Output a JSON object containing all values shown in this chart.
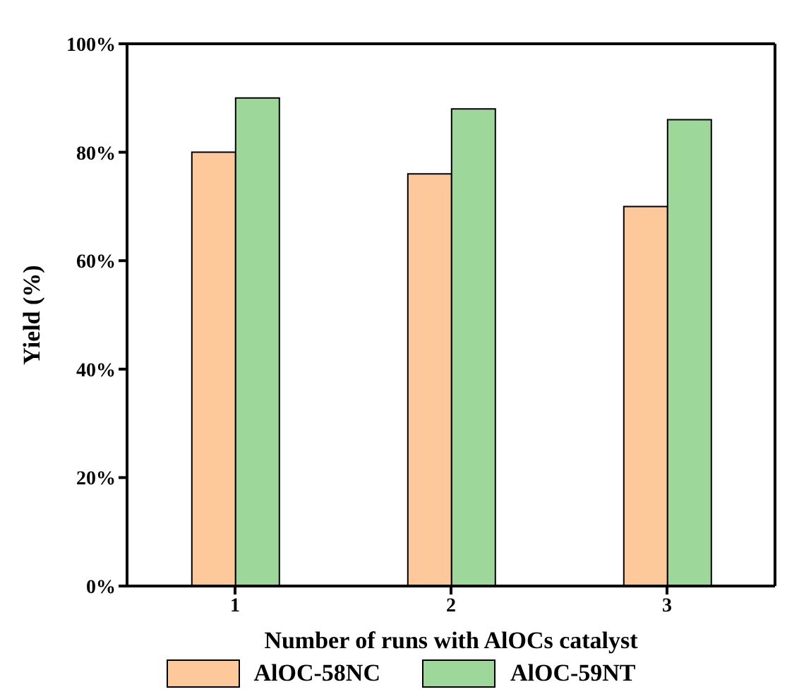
{
  "chart_data": {
    "type": "bar",
    "xlabel": "Number of runs with AlOCs catalyst",
    "ylabel": "Yield (%)",
    "categories": [
      "1",
      "2",
      "3"
    ],
    "series": [
      {
        "name": "AlOC-58NC",
        "color": "#fdc99b",
        "values": [
          80,
          76,
          70
        ]
      },
      {
        "name": "AlOC-59NT",
        "color": "#9dd79a",
        "values": [
          90,
          88,
          86
        ]
      }
    ],
    "ylim": [
      0,
      100
    ],
    "yticks": [
      {
        "value": 0,
        "label": "0%"
      },
      {
        "value": 20,
        "label": "20%"
      },
      {
        "value": 40,
        "label": "40%"
      },
      {
        "value": 60,
        "label": "60%"
      },
      {
        "value": 80,
        "label": "80%"
      },
      {
        "value": 100,
        "label": "100%"
      }
    ],
    "grid": false,
    "legend": "bottom"
  }
}
